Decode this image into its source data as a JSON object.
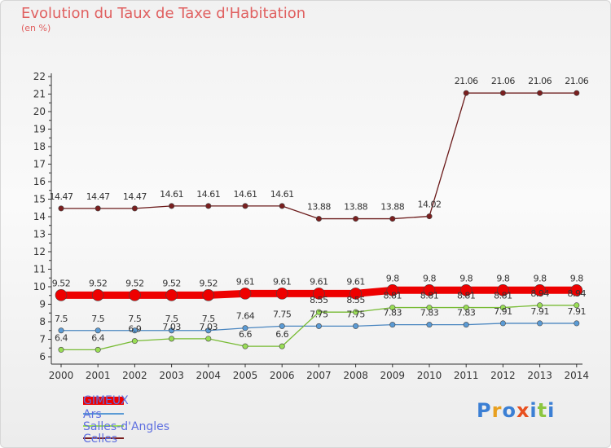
{
  "chart_data": {
    "type": "line",
    "title": "Evolution du Taux de Taxe d'Habitation",
    "ylabel": "(en %)",
    "xlabel": "",
    "ylim": [
      6,
      22
    ],
    "yticks": [
      6,
      7,
      8,
      9,
      10,
      11,
      12,
      13,
      14,
      15,
      16,
      17,
      18,
      19,
      20,
      21,
      22
    ],
    "grid": false,
    "legend_position": "bottom-left",
    "x": [
      "2000",
      "2001",
      "2002",
      "2003",
      "2004",
      "2005",
      "2006",
      "2007",
      "2008",
      "2009",
      "2010",
      "2011",
      "2012",
      "2013",
      "2014"
    ],
    "series": [
      {
        "name": "GIMEUX",
        "color": "#ee0000",
        "values": [
          9.52,
          9.52,
          9.52,
          9.52,
          9.52,
          9.61,
          9.61,
          9.61,
          9.61,
          9.8,
          9.8,
          9.8,
          9.8,
          9.8,
          9.8
        ],
        "labels": [
          "9.52",
          "9.52",
          "9.52",
          "9.52",
          "9.52",
          "9.61",
          "9.61",
          "9.61",
          "9.61",
          "9.8",
          "9.8",
          "9.8",
          "9.8",
          "9.8",
          "9.8"
        ]
      },
      {
        "name": "Ars",
        "color": "#5b9bd5",
        "values": [
          7.5,
          7.5,
          7.5,
          7.5,
          7.5,
          7.64,
          7.75,
          7.75,
          7.75,
          7.83,
          7.83,
          7.83,
          7.91,
          7.91,
          7.91
        ],
        "labels": [
          "7.5",
          "7.5",
          "7.5",
          "7.5",
          "7.5",
          "7.64",
          "7.75",
          "7.75",
          "7.75",
          "7.83",
          "7.83",
          "7.83",
          "7.91",
          "7.91",
          "7.91"
        ]
      },
      {
        "name": "Salles-d'Angles",
        "color": "#99dd55",
        "values": [
          6.4,
          6.4,
          6.9,
          7.03,
          7.03,
          6.6,
          6.6,
          8.55,
          8.55,
          8.81,
          8.81,
          8.81,
          8.81,
          8.94,
          8.94
        ],
        "labels": [
          "6.4",
          "6.4",
          "6.9",
          "7.03",
          "7.03",
          "6.6",
          "6.6",
          "8.55",
          "8.55",
          "8.81",
          "8.81",
          "8.81",
          "8.81",
          "8.94",
          "8.94"
        ]
      },
      {
        "name": "Celles",
        "color": "#7a1f1f",
        "values": [
          14.47,
          14.47,
          14.47,
          14.61,
          14.61,
          14.61,
          14.61,
          13.88,
          13.88,
          13.88,
          14.02,
          21.06,
          21.06,
          21.06,
          21.06
        ],
        "labels": [
          "14.47",
          "14.47",
          "14.47",
          "14.61",
          "14.61",
          "14.61",
          "14.61",
          "13.88",
          "13.88",
          "13.88",
          "14.02",
          "21.06",
          "21.06",
          "21.06",
          "21.06"
        ]
      }
    ]
  },
  "logo": {
    "text": "Proxiti",
    "colors": [
      "#3b7fd4",
      "#e8a020",
      "#3b7fd4",
      "#e85020",
      "#3b7fd4",
      "#8cc63f",
      "#3b7fd4"
    ]
  }
}
